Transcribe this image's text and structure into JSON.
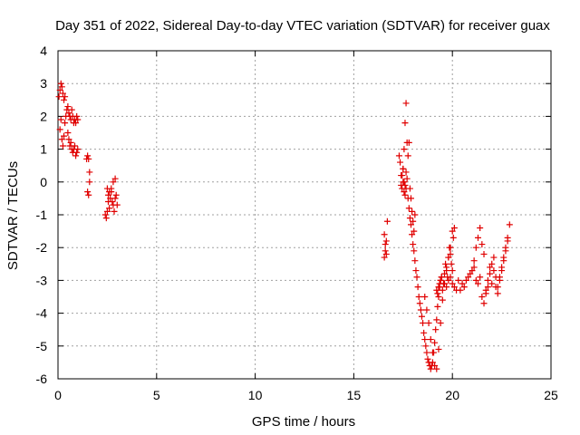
{
  "chart_data": {
    "type": "scatter",
    "title": "Day 351 of 2022, Sidereal Day-to-day VTEC variation (SDTVAR) for receiver guax",
    "xlabel": "GPS time / hours",
    "ylabel": "SDTVAR / TECUs",
    "xlim": [
      0,
      25
    ],
    "ylim": [
      -6,
      4
    ],
    "x_ticks": [
      0,
      5,
      10,
      15,
      20,
      25
    ],
    "y_ticks": [
      -6,
      -5,
      -4,
      -3,
      -2,
      -1,
      0,
      1,
      2,
      3,
      4
    ],
    "grid": true,
    "marker": "+",
    "series_color": "#e00000",
    "series": [
      {
        "name": "SDTVAR",
        "x": [
          0.05,
          0.1,
          0.15,
          0.2,
          0.25,
          0.3,
          0.35,
          0.1,
          0.15,
          0.2,
          0.25,
          0.3,
          0.35,
          0.4,
          0.45,
          0.5,
          0.55,
          0.6,
          0.65,
          0.7,
          0.75,
          0.8,
          0.85,
          0.9,
          0.95,
          1.0,
          0.5,
          0.55,
          0.6,
          0.65,
          0.7,
          0.75,
          0.8,
          0.85,
          0.9,
          0.95,
          1.0,
          1.45,
          1.5,
          1.55,
          1.6,
          1.5,
          1.55,
          1.6,
          2.4,
          2.45,
          2.5,
          2.55,
          2.6,
          2.65,
          2.7,
          2.75,
          2.8,
          2.85,
          2.9,
          2.95,
          2.5,
          2.55,
          2.6,
          2.7,
          2.8,
          2.9,
          3.0,
          16.55,
          16.6,
          16.65,
          16.7,
          16.55,
          16.6,
          16.65,
          17.3,
          17.35,
          17.4,
          17.45,
          17.5,
          17.55,
          17.6,
          17.65,
          17.5,
          17.55,
          17.6,
          17.65,
          17.7,
          17.75,
          17.8,
          17.85,
          17.9,
          17.95,
          18.0,
          18.05,
          18.1,
          17.4,
          17.45,
          17.5,
          17.55,
          17.6,
          17.65,
          17.7,
          17.75,
          17.8,
          17.85,
          17.9,
          17.95,
          18.0,
          18.05,
          18.1,
          18.15,
          18.2,
          18.25,
          18.3,
          18.35,
          18.4,
          18.45,
          18.5,
          18.55,
          18.6,
          18.65,
          18.7,
          18.75,
          18.8,
          18.85,
          18.9,
          18.95,
          19.0,
          19.05,
          19.1,
          19.15,
          19.2,
          19.25,
          19.3,
          19.35,
          19.4,
          19.45,
          18.6,
          18.7,
          18.8,
          18.9,
          19.0,
          19.1,
          19.2,
          19.3,
          19.4,
          19.5,
          19.6,
          19.7,
          19.8,
          19.9,
          20.0,
          19.2,
          19.25,
          19.3,
          19.35,
          19.4,
          19.45,
          19.5,
          19.55,
          19.6,
          19.65,
          19.7,
          19.75,
          19.8,
          19.85,
          19.9,
          19.95,
          20.0,
          20.05,
          20.1,
          19.7,
          19.8,
          19.9,
          20.0,
          20.1,
          20.2,
          20.3,
          20.4,
          20.5,
          20.6,
          20.7,
          20.8,
          20.9,
          21.0,
          21.1,
          21.2,
          21.3,
          21.4,
          21.5,
          21.6,
          21.7,
          21.8,
          21.9,
          22.0,
          22.1,
          22.2,
          22.3,
          22.4,
          22.5,
          22.6,
          22.7,
          22.8,
          22.9,
          21.0,
          21.1,
          21.2,
          21.3,
          21.4,
          21.5,
          21.6,
          21.7,
          21.8,
          21.9,
          22.0,
          22.1,
          22.2,
          22.3,
          22.4,
          22.5,
          22.6,
          22.7,
          22.8
        ],
        "y": [
          2.6,
          2.8,
          3.0,
          2.9,
          2.7,
          2.5,
          2.6,
          1.6,
          1.9,
          1.3,
          1.1,
          1.4,
          1.8,
          2.0,
          2.2,
          2.3,
          2.1,
          2.0,
          1.9,
          2.2,
          2.0,
          1.8,
          1.9,
          1.8,
          2.0,
          1.9,
          1.5,
          1.3,
          1.1,
          1.2,
          1.0,
          0.9,
          1.0,
          1.1,
          0.8,
          0.9,
          1.0,
          0.7,
          0.8,
          0.7,
          0.3,
          -0.3,
          -0.4,
          0.0,
          -1.0,
          -1.1,
          -0.9,
          -0.6,
          -0.8,
          -0.5,
          -0.3,
          -0.6,
          -0.7,
          -0.9,
          -0.5,
          -0.4,
          -0.2,
          -0.4,
          -0.3,
          -0.2,
          0.0,
          0.1,
          -0.7,
          -2.3,
          -2.1,
          -1.8,
          -1.2,
          -1.6,
          -1.9,
          -2.2,
          0.8,
          0.6,
          0.2,
          -0.2,
          0.4,
          1.0,
          1.8,
          2.4,
          0.0,
          -0.3,
          -0.1,
          0.3,
          1.2,
          0.8,
          1.2,
          -0.2,
          -0.5,
          -0.9,
          -1.2,
          -1.5,
          -1.0,
          -0.1,
          0.2,
          0.4,
          0.0,
          -0.4,
          -0.2,
          0.1,
          -0.5,
          -0.8,
          -1.1,
          -1.3,
          -1.6,
          -1.9,
          -2.1,
          -2.4,
          -2.7,
          -2.9,
          -3.2,
          -3.5,
          -3.7,
          -3.9,
          -4.1,
          -4.3,
          -4.6,
          -4.8,
          -5.0,
          -5.2,
          -5.4,
          -5.5,
          -5.6,
          -5.7,
          -5.6,
          -5.5,
          -5.2,
          -4.9,
          -4.5,
          -4.2,
          -3.8,
          -3.5,
          -3.2,
          -3.0,
          -2.9,
          -3.5,
          -3.9,
          -4.3,
          -4.8,
          -5.2,
          -5.6,
          -5.7,
          -5.1,
          -4.3,
          -3.6,
          -3.1,
          -2.7,
          -2.3,
          -2.0,
          -1.5,
          -3.3,
          -3.4,
          -3.2,
          -3.1,
          -3.0,
          -2.9,
          -3.3,
          -3.1,
          -2.8,
          -2.5,
          -2.6,
          -2.9,
          -2.3,
          -2.0,
          -2.2,
          -2.5,
          -2.7,
          -1.7,
          -1.4,
          -3.2,
          -3.0,
          -2.9,
          -3.1,
          -3.2,
          -3.3,
          -3.0,
          -3.3,
          -3.1,
          -3.2,
          -3.0,
          -2.9,
          -2.8,
          -2.7,
          -2.6,
          -3.0,
          -3.1,
          -2.9,
          -3.5,
          -3.7,
          -3.3,
          -3.0,
          -2.6,
          -3.1,
          -2.7,
          -3.2,
          -3.4,
          -2.9,
          -2.6,
          -2.3,
          -2.0,
          -1.7,
          -1.3,
          -2.7,
          -2.4,
          -2.0,
          -1.7,
          -1.4,
          -1.9,
          -2.2,
          -3.4,
          -3.2,
          -2.8,
          -2.5,
          -2.3,
          -2.9,
          -3.2,
          -3.0,
          -2.7,
          -2.4,
          -2.1,
          -1.8
        ]
      }
    ]
  }
}
